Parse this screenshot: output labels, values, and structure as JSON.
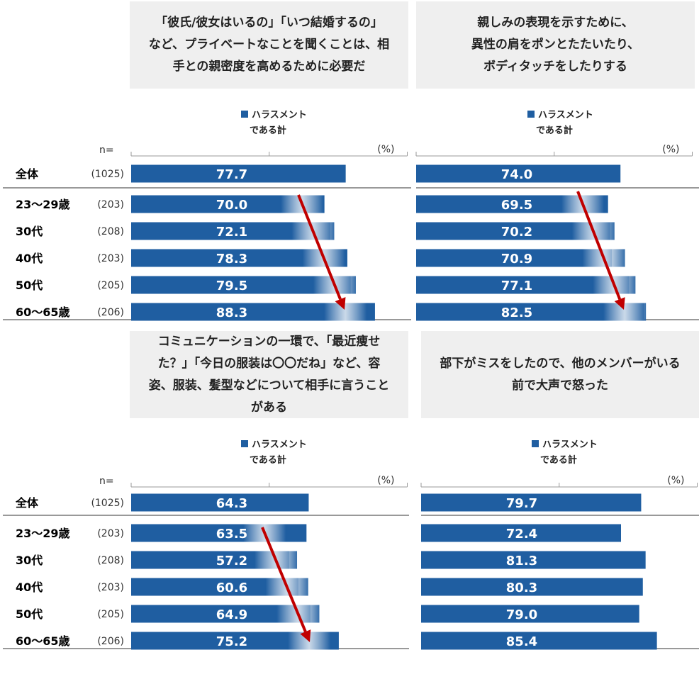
{
  "colors": {
    "bar": "#1f5ea1",
    "arrow": "#c00000",
    "heading_bg": "#efefef"
  },
  "legend": {
    "series_line1": "ハラスメント",
    "series_line2": "である計"
  },
  "axis": {
    "n_label": "n=",
    "unit_label": "(%)"
  },
  "chart_data": [
    {
      "type": "bar",
      "orientation": "horizontal",
      "title": "「彼氏/彼女はいるの」「いつ結婚するの」など、プライベートなことを聞くことは、相手との親密度を高めるために必要だ",
      "title_lines": [
        "「彼氏/彼女はいるの」「いつ結婚するの」",
        "など、プライベートなことを聞くことは、相",
        "手との親密度を高めるために必要だ"
      ],
      "categories": [
        "全体",
        "23～29歳",
        "30代",
        "40代",
        "50代",
        "60～65歳"
      ],
      "n": [
        "(1025)",
        "(203)",
        "(208)",
        "(203)",
        "(205)",
        "(206)"
      ],
      "series": [
        {
          "name": "ハラスメントである計",
          "values": [
            77.7,
            70.0,
            72.1,
            78.3,
            79.5,
            88.3
          ]
        }
      ],
      "value_labels": [
        "77.7",
        "70.0",
        "72.1",
        "78.3",
        "79.5",
        "88.3"
      ],
      "xlim": [
        0,
        100
      ],
      "show_row_labels": true,
      "trend_arrow": true
    },
    {
      "type": "bar",
      "orientation": "horizontal",
      "title": "親しみの表現を示すために、異性の肩をポンとたたいたり、ボディタッチをしたりする",
      "title_lines": [
        "親しみの表現を示すために、",
        "異性の肩をポンとたたいたり、",
        "ボディタッチをしたりする"
      ],
      "categories": [
        "全体",
        "23～29歳",
        "30代",
        "40代",
        "50代",
        "60～65歳"
      ],
      "series": [
        {
          "name": "ハラスメントである計",
          "values": [
            74.0,
            69.5,
            70.2,
            70.9,
            77.1,
            82.5
          ]
        }
      ],
      "value_labels": [
        "74.0",
        "69.5",
        "70.2",
        "70.9",
        "77.1",
        "82.5"
      ],
      "xlim": [
        0,
        100
      ],
      "show_row_labels": false,
      "trend_arrow": true
    },
    {
      "type": "bar",
      "orientation": "horizontal",
      "title": "コミュニケーションの一環で、「最近痩せた？」「今日の服装は〇〇だね」など、容姿、服装、髪型などについて相手に言うことがある",
      "title_lines": [
        "コミュニケーションの一環で、「最近痩せ",
        "た？」「今日の服装は〇〇だね」など、容",
        "姿、服装、髪型などについて相手に言うこと",
        "がある"
      ],
      "categories": [
        "全体",
        "23～29歳",
        "30代",
        "40代",
        "50代",
        "60～65歳"
      ],
      "n": [
        "(1025)",
        "(203)",
        "(208)",
        "(203)",
        "(205)",
        "(206)"
      ],
      "series": [
        {
          "name": "ハラスメントである計",
          "values": [
            64.3,
            63.5,
            57.2,
            60.6,
            64.9,
            75.2
          ]
        }
      ],
      "value_labels": [
        "64.3",
        "63.5",
        "57.2",
        "60.6",
        "64.9",
        "75.2"
      ],
      "xlim": [
        0,
        100
      ],
      "show_row_labels": true,
      "trend_arrow": true
    },
    {
      "type": "bar",
      "orientation": "horizontal",
      "title": "部下がミスをしたので、他のメンバーがいる前で大声で怒った",
      "title_lines": [
        "部下がミスをしたので、他のメンバーがいる",
        "前で大声で怒った"
      ],
      "categories": [
        "全体",
        "23～29歳",
        "30代",
        "40代",
        "50代",
        "60～65歳"
      ],
      "series": [
        {
          "name": "ハラスメントである計",
          "values": [
            79.7,
            72.4,
            81.3,
            80.3,
            79.0,
            85.4
          ]
        }
      ],
      "value_labels": [
        "79.7",
        "72.4",
        "81.3",
        "80.3",
        "79.0",
        "85.4"
      ],
      "xlim": [
        0,
        100
      ],
      "show_row_labels": false,
      "trend_arrow": false
    }
  ]
}
